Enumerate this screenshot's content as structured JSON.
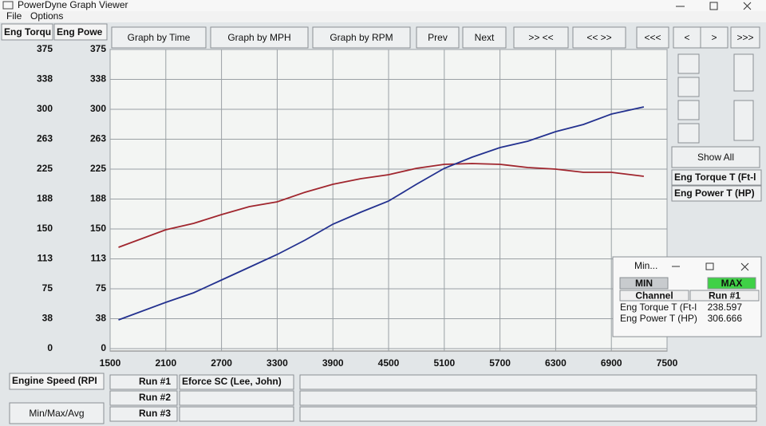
{
  "window": {
    "title": "PowerDyne Graph Viewer"
  },
  "menu": [
    "File",
    "Options"
  ],
  "toolbar": [
    "Graph by Time",
    "Graph by MPH",
    "Graph by RPM",
    "Prev",
    "Next",
    ">> <<",
    "<< >>",
    "<<<",
    "<",
    ">",
    ">>>"
  ],
  "side": {
    "show_all": "Show All"
  },
  "chart_data": {
    "type": "line",
    "xlabel": "Engine Speed (RPI",
    "ylabel": "Eng Torqu",
    "y2label": "Eng Powe",
    "x": [
      1590,
      2100,
      2400,
      2700,
      3000,
      3300,
      3600,
      3900,
      4200,
      4500,
      4800,
      5100,
      5400,
      5700,
      6000,
      6300,
      6600,
      6900,
      7250
    ],
    "xlim": [
      1500,
      7500
    ],
    "xticks": [
      1500,
      2100,
      2700,
      3300,
      3900,
      4500,
      5100,
      5700,
      6300,
      6900,
      7500
    ],
    "ylim": [
      0,
      375
    ],
    "yticks": [
      0,
      {
        "value": 37.5,
        "label": "38"
      },
      75,
      {
        "value": 112.5,
        "label": "113"
      },
      150,
      {
        "value": 187.5,
        "label": "188"
      },
      225,
      {
        "value": 262.5,
        "label": "263"
      },
      300,
      {
        "value": 337.5,
        "label": "338"
      },
      375
    ],
    "y2lim": [
      0,
      375
    ],
    "y2ticks": [
      0,
      {
        "value": 37.5,
        "label": "38"
      },
      75,
      {
        "value": 112.5,
        "label": "113"
      },
      150,
      {
        "value": 187.5,
        "label": "188"
      },
      225,
      {
        "value": 262.5,
        "label": "263"
      },
      300,
      {
        "value": 337.5,
        "label": "338"
      },
      375
    ],
    "grid": true,
    "series": [
      {
        "name": "Eng Torque T (Ft-l",
        "color": "#a0262e",
        "values": [
          127,
          149,
          157,
          168,
          178,
          184,
          196,
          206,
          213,
          218,
          226,
          231,
          232,
          231,
          227,
          225,
          221,
          221,
          216
        ]
      },
      {
        "name": "Eng Power T (HP)",
        "color": "#23318f",
        "axis": "y2",
        "values": [
          36,
          58,
          70,
          86,
          102,
          118,
          136,
          156,
          171,
          185,
          206,
          226,
          240,
          252,
          260,
          272,
          281,
          294,
          303
        ]
      }
    ]
  },
  "popup": {
    "title": "Min...",
    "buttons": [
      "MIN",
      "MAX"
    ],
    "columns": [
      "Channel",
      "Run #1"
    ],
    "rows": [
      [
        "Eng Torque T (Ft-l",
        238.597
      ],
      [
        "Eng Power T (HP)",
        306.666
      ]
    ]
  },
  "runs": [
    {
      "label": "Run #1",
      "name": "Eforce SC (Lee, John)"
    },
    {
      "label": "Run #2"
    },
    {
      "label": "Run #3"
    }
  ],
  "footer": {
    "button": "Min/Max/Avg"
  }
}
